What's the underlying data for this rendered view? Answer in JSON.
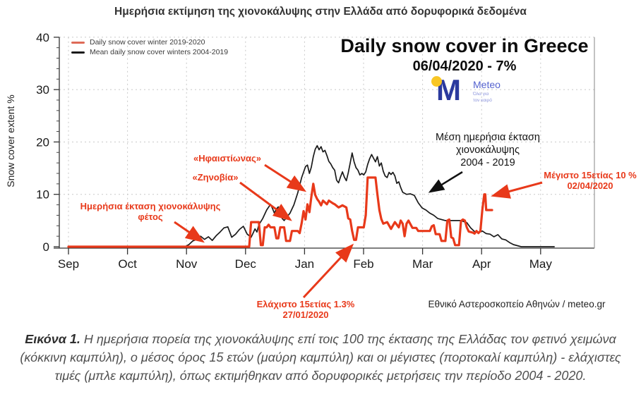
{
  "page_title": "Ημερήσια εκτίμηση της χιονοκάλυψης στην Ελλάδα από δορυφορικά δεδομένα",
  "chart_data": {
    "type": "line",
    "title": "Daily snow cover in Greece",
    "subtitle": "06/04/2020 - 7%",
    "ylabel": "Snow cover extent %",
    "ylim": [
      0,
      40
    ],
    "y_ticks": [
      0,
      10,
      20,
      30,
      40
    ],
    "x_tick_labels": [
      "Sep",
      "Oct",
      "Nov",
      "Dec",
      "Jan",
      "Feb",
      "Mar",
      "Apr",
      "May"
    ],
    "grid": "dashed",
    "legend_position": "top-left",
    "x_unit": "days since Sep 1",
    "series": [
      {
        "name": "Daily snow cover winter 2019-2020",
        "color": "#e8391a",
        "legend_color": "#de6a57",
        "points": [
          [
            0,
            0
          ],
          [
            93,
            0
          ],
          [
            94,
            4.7
          ],
          [
            98,
            4.7
          ],
          [
            99,
            0.3
          ],
          [
            100,
            0.3
          ],
          [
            101,
            3.7
          ],
          [
            102,
            3.7
          ],
          [
            103,
            4.2
          ],
          [
            104,
            3.7
          ],
          [
            106,
            3.7
          ],
          [
            107,
            1.6
          ],
          [
            108,
            1.6
          ],
          [
            109,
            3.7
          ],
          [
            111,
            3.7
          ],
          [
            112,
            1.1
          ],
          [
            114,
            1.1
          ],
          [
            115,
            3.0
          ],
          [
            118,
            3.0
          ],
          [
            119,
            2.6
          ],
          [
            120,
            4.5
          ],
          [
            121,
            6.8
          ],
          [
            122,
            5.2
          ],
          [
            123,
            8.1
          ],
          [
            124,
            6.6
          ],
          [
            125,
            9.5
          ],
          [
            126,
            12.0
          ],
          [
            127,
            9.9
          ],
          [
            128,
            9.1
          ],
          [
            129,
            8.6
          ],
          [
            130,
            7.9
          ],
          [
            131,
            8.8
          ],
          [
            133,
            8.1
          ],
          [
            134,
            8.8
          ],
          [
            136,
            8.3
          ],
          [
            137,
            8.1
          ],
          [
            139,
            7.5
          ],
          [
            141,
            7.9
          ],
          [
            143,
            7.5
          ],
          [
            144,
            5.4
          ],
          [
            145,
            5.2
          ],
          [
            146,
            3.0
          ],
          [
            147,
            1.3
          ],
          [
            148,
            1.3
          ],
          [
            149,
            3.7
          ],
          [
            152,
            3.7
          ],
          [
            153,
            6.0
          ],
          [
            154,
            13.2
          ],
          [
            158,
            13.2
          ],
          [
            159,
            10.0
          ],
          [
            160,
            7.0
          ],
          [
            161,
            5.3
          ],
          [
            162,
            4.4
          ],
          [
            164,
            4.7
          ],
          [
            166,
            3.4
          ],
          [
            168,
            4.7
          ],
          [
            170,
            3.7
          ],
          [
            171,
            5.0
          ],
          [
            172,
            4.4
          ],
          [
            173,
            2.0
          ],
          [
            174,
            4.4
          ],
          [
            175,
            5.0
          ],
          [
            177,
            3.6
          ],
          [
            179,
            3.6
          ],
          [
            180,
            3.0
          ],
          [
            186,
            3.0
          ],
          [
            187,
            3.9
          ],
          [
            188,
            4.1
          ],
          [
            189,
            2.4
          ],
          [
            191,
            2.4
          ],
          [
            192,
            1.1
          ],
          [
            194,
            1.1
          ],
          [
            195,
            5.0
          ],
          [
            196,
            5.2
          ],
          [
            197,
            1.8
          ],
          [
            198,
            1.6
          ],
          [
            199,
            0.3
          ],
          [
            201,
            0.3
          ],
          [
            202,
            4.9
          ],
          [
            203,
            5.2
          ],
          [
            204,
            5.0
          ],
          [
            205,
            3.7
          ],
          [
            206,
            2.9
          ],
          [
            208,
            2.7
          ],
          [
            209,
            2.5
          ],
          [
            210,
            3.0
          ],
          [
            211,
            2.6
          ],
          [
            212,
            3.0
          ],
          [
            213,
            7.0
          ],
          [
            214,
            10.0
          ],
          [
            214.5,
            10.0
          ],
          [
            215,
            7.0
          ],
          [
            218,
            7.0
          ]
        ]
      },
      {
        "name": "Mean daily snow cover winters 2004-2019",
        "color": "#1a1a1a",
        "legend_color": "#1a1a1a",
        "points": [
          [
            0,
            0
          ],
          [
            60,
            0
          ],
          [
            62,
            0.4
          ],
          [
            64,
            1.1
          ],
          [
            66,
            1.4
          ],
          [
            68,
            2.0
          ],
          [
            70,
            1.4
          ],
          [
            72,
            1.9
          ],
          [
            74,
            1.2
          ],
          [
            76,
            2.1
          ],
          [
            78,
            2.8
          ],
          [
            80,
            3.6
          ],
          [
            82,
            3.8
          ],
          [
            84,
            1.8
          ],
          [
            86,
            2.4
          ],
          [
            88,
            3.3
          ],
          [
            90,
            3.9
          ],
          [
            92,
            2.4
          ],
          [
            94,
            1.8
          ],
          [
            95,
            2.6
          ],
          [
            96,
            3.4
          ],
          [
            97,
            2.8
          ],
          [
            98,
            4.2
          ],
          [
            100,
            5.4
          ],
          [
            102,
            7.0
          ],
          [
            104,
            8.1
          ],
          [
            105,
            7.3
          ],
          [
            106,
            6.4
          ],
          [
            107,
            7.2
          ],
          [
            108,
            7.6
          ],
          [
            109,
            6.7
          ],
          [
            110,
            5.4
          ],
          [
            111,
            5.0
          ],
          [
            112,
            5.5
          ],
          [
            114,
            6.4
          ],
          [
            116,
            8.0
          ],
          [
            118,
            10.3
          ],
          [
            120,
            13.2
          ],
          [
            122,
            15.3
          ],
          [
            123,
            15.6
          ],
          [
            124,
            14.0
          ],
          [
            125,
            15.2
          ],
          [
            126,
            17.2
          ],
          [
            127,
            18.6
          ],
          [
            128,
            19.3
          ],
          [
            129,
            18.5
          ],
          [
            130,
            19.1
          ],
          [
            131,
            18.1
          ],
          [
            132,
            18.4
          ],
          [
            133,
            17.4
          ],
          [
            134,
            16.3
          ],
          [
            135,
            15.8
          ],
          [
            136,
            15.1
          ],
          [
            137,
            14.6
          ],
          [
            138,
            12.7
          ],
          [
            139,
            12.2
          ],
          [
            140,
            13.3
          ],
          [
            141,
            14.3
          ],
          [
            142,
            13.3
          ],
          [
            143,
            12.6
          ],
          [
            144,
            14.1
          ],
          [
            145,
            16.0
          ],
          [
            146,
            17.9
          ],
          [
            147,
            16.2
          ],
          [
            148,
            15.1
          ],
          [
            149,
            14.6
          ],
          [
            150,
            13.7
          ],
          [
            151,
            14.0
          ],
          [
            152,
            13.7
          ],
          [
            153,
            14.3
          ],
          [
            154,
            15.7
          ],
          [
            155,
            16.8
          ],
          [
            156,
            17.6
          ],
          [
            157,
            16.9
          ],
          [
            158,
            16.2
          ],
          [
            159,
            17.2
          ],
          [
            160,
            15.4
          ],
          [
            161,
            16.0
          ],
          [
            162,
            14.4
          ],
          [
            163,
            13.5
          ],
          [
            164,
            13.2
          ],
          [
            165,
            14.2
          ],
          [
            166,
            13.8
          ],
          [
            167,
            14.2
          ],
          [
            168,
            13.5
          ],
          [
            169,
            12.1
          ],
          [
            170,
            12.4
          ],
          [
            171,
            11.3
          ],
          [
            172,
            10.4
          ],
          [
            174,
            10.0
          ],
          [
            176,
            10.1
          ],
          [
            178,
            9.8
          ],
          [
            180,
            8.4
          ],
          [
            182,
            7.4
          ],
          [
            184,
            7.0
          ],
          [
            186,
            6.4
          ],
          [
            188,
            6.0
          ],
          [
            190,
            5.4
          ],
          [
            192,
            5.2
          ],
          [
            194,
            5.0
          ],
          [
            202,
            5.0
          ],
          [
            205,
            4.6
          ],
          [
            207,
            3.6
          ],
          [
            209,
            2.9
          ],
          [
            211,
            2.7
          ],
          [
            213,
            3.0
          ],
          [
            215,
            2.5
          ],
          [
            217,
            2.4
          ],
          [
            219,
            1.9
          ],
          [
            221,
            2.3
          ],
          [
            223,
            1.5
          ],
          [
            225,
            1.3
          ],
          [
            227,
            0.8
          ],
          [
            229,
            0.4
          ],
          [
            231,
            0.2
          ],
          [
            233,
            0
          ],
          [
            250,
            0
          ]
        ]
      }
    ]
  },
  "annotations": {
    "hephaestion": "«Ηφαιστίωνας»",
    "zenobia": "«Ζηνοβία»",
    "current_line1": "Ημερήσια έκταση χιονοκάλυψης",
    "current_line2": "φέτος",
    "mean_line1": "Μέση ημερήσια έκταση",
    "mean_line2": "χιονοκάλυψης",
    "mean_line3": "2004 - 2019",
    "max_line1": "Μέγιστο 15ετίας 10 %",
    "max_line2": "02/04/2020",
    "min_line1": "Ελάχιστο 15ετίας 1.3%",
    "min_line2": "27/01/2020"
  },
  "logo": {
    "m": "M",
    "wordmark": "Meteo",
    "tagline1": "Όλα για",
    "tagline2": "τον καιρό",
    "m_color": "#2b3a9e",
    "dot_color": "#f8c625",
    "wordmark_color": "#5563cf"
  },
  "attribution": "Εθνικό Αστεροσκοπείο Αθηνών / meteo.gr",
  "caption": {
    "label": "Εικόνα 1.",
    "text": "Η ημερήσια πορεία της χιονοκάλυψης επί τοις 100 της έκτασης της Ελλάδας τον φετινό χειμώνα (κόκκινη καμπύλη), ο μέσος όρος 15 ετών (μαύρη καμπύλη) και οι μέγιστες (πορτοκαλί καμπύλη) - ελάχιστες τιμές (μπλε καμπύλη), όπως εκτιμήθηκαν από δορυφορικές μετρήσεις την περίοδο 2004 - 2020."
  }
}
